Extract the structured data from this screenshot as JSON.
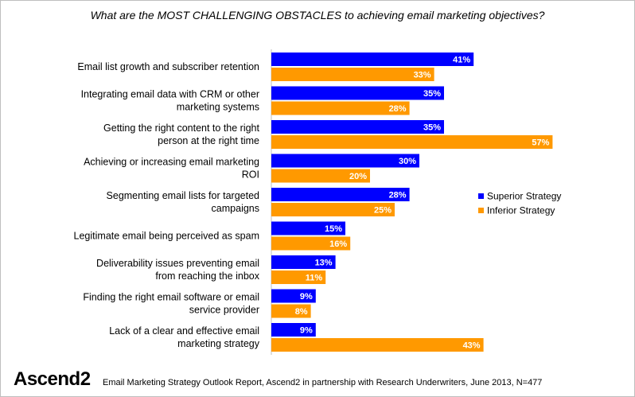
{
  "chart_data": {
    "type": "bar",
    "orientation": "horizontal",
    "title": "What are the MOST CHALLENGING OBSTACLES to achieving email marketing objectives?",
    "categories": [
      "Email list growth and subscriber retention",
      "Integrating email data with CRM or other marketing systems",
      "Getting the right content to the right person at the right time",
      "Achieving or increasing email marketing ROI",
      "Segmenting email lists for targeted campaigns",
      "Legitimate email being perceived as spam",
      "Deliverability issues preventing email from reaching the inbox",
      "Finding the right email software or email service provider",
      "Lack of a clear and effective email marketing strategy"
    ],
    "series": [
      {
        "name": "Superior Strategy",
        "color": "#0000ff",
        "values": [
          41,
          35,
          35,
          30,
          28,
          15,
          13,
          9,
          9
        ]
      },
      {
        "name": "Inferior Strategy",
        "color": "#ff9900",
        "values": [
          33,
          28,
          57,
          20,
          25,
          16,
          11,
          8,
          43
        ]
      }
    ],
    "value_suffix": "%",
    "xlim": [
      0,
      60
    ],
    "grid": false,
    "legend_position": "right"
  },
  "branding": {
    "logo_text": "Ascend2",
    "footer_note": "Email Marketing Strategy Outlook Report, Ascend2 in partnership with Research Underwriters, June 2013, N=477"
  }
}
